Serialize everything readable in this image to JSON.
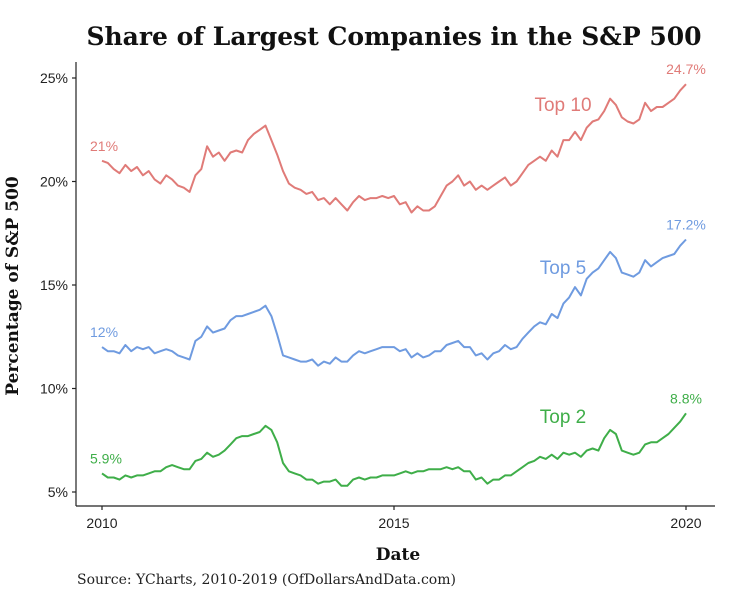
{
  "chart_data": {
    "type": "line",
    "title": "Share of Largest Companies in the S&P 500",
    "xlabel": "Date",
    "ylabel": "Percentage of S&P 500",
    "source": "Source:  YCharts, 2010-2019 (OfDollarsAndData.com)",
    "xlim": [
      2010,
      2020
    ],
    "ylim": [
      5,
      25
    ],
    "x_ticks": [
      2010,
      2015,
      2020
    ],
    "x_tick_labels": [
      "2010",
      "2015",
      "2020"
    ],
    "y_ticks": [
      5,
      10,
      15,
      20,
      25
    ],
    "y_tick_labels": [
      "5%",
      "10%",
      "15%",
      "20%",
      "25%"
    ],
    "grid": false,
    "legend": "none (direct labels)",
    "series": [
      {
        "name": "Top 10",
        "color": "#e07b78",
        "start_label": "21%",
        "end_label": "24.7%",
        "points": [
          [
            2010.0,
            21.0
          ],
          [
            2010.1,
            20.9
          ],
          [
            2010.2,
            20.6
          ],
          [
            2010.3,
            20.4
          ],
          [
            2010.4,
            20.8
          ],
          [
            2010.5,
            20.5
          ],
          [
            2010.6,
            20.7
          ],
          [
            2010.7,
            20.3
          ],
          [
            2010.8,
            20.5
          ],
          [
            2010.9,
            20.1
          ],
          [
            2011.0,
            19.9
          ],
          [
            2011.1,
            20.3
          ],
          [
            2011.2,
            20.1
          ],
          [
            2011.3,
            19.8
          ],
          [
            2011.4,
            19.7
          ],
          [
            2011.5,
            19.5
          ],
          [
            2011.6,
            20.3
          ],
          [
            2011.7,
            20.6
          ],
          [
            2011.8,
            21.7
          ],
          [
            2011.9,
            21.2
          ],
          [
            2012.0,
            21.4
          ],
          [
            2012.1,
            21.0
          ],
          [
            2012.2,
            21.4
          ],
          [
            2012.3,
            21.5
          ],
          [
            2012.4,
            21.4
          ],
          [
            2012.5,
            22.0
          ],
          [
            2012.6,
            22.3
          ],
          [
            2012.7,
            22.5
          ],
          [
            2012.8,
            22.7
          ],
          [
            2012.9,
            22.0
          ],
          [
            2013.0,
            21.3
          ],
          [
            2013.1,
            20.5
          ],
          [
            2013.2,
            19.9
          ],
          [
            2013.3,
            19.7
          ],
          [
            2013.4,
            19.6
          ],
          [
            2013.5,
            19.4
          ],
          [
            2013.6,
            19.5
          ],
          [
            2013.7,
            19.1
          ],
          [
            2013.8,
            19.2
          ],
          [
            2013.9,
            18.9
          ],
          [
            2014.0,
            19.2
          ],
          [
            2014.1,
            18.9
          ],
          [
            2014.2,
            18.6
          ],
          [
            2014.3,
            19.0
          ],
          [
            2014.4,
            19.3
          ],
          [
            2014.5,
            19.1
          ],
          [
            2014.6,
            19.2
          ],
          [
            2014.7,
            19.2
          ],
          [
            2014.8,
            19.3
          ],
          [
            2014.9,
            19.2
          ],
          [
            2015.0,
            19.3
          ],
          [
            2015.1,
            18.9
          ],
          [
            2015.2,
            19.0
          ],
          [
            2015.3,
            18.5
          ],
          [
            2015.4,
            18.8
          ],
          [
            2015.5,
            18.6
          ],
          [
            2015.6,
            18.6
          ],
          [
            2015.7,
            18.8
          ],
          [
            2015.8,
            19.3
          ],
          [
            2015.9,
            19.8
          ],
          [
            2016.0,
            20.0
          ],
          [
            2016.1,
            20.3
          ],
          [
            2016.2,
            19.8
          ],
          [
            2016.3,
            20.0
          ],
          [
            2016.4,
            19.6
          ],
          [
            2016.5,
            19.8
          ],
          [
            2016.6,
            19.6
          ],
          [
            2016.7,
            19.8
          ],
          [
            2016.8,
            20.0
          ],
          [
            2016.9,
            20.2
          ],
          [
            2017.0,
            19.8
          ],
          [
            2017.1,
            20.0
          ],
          [
            2017.2,
            20.4
          ],
          [
            2017.3,
            20.8
          ],
          [
            2017.4,
            21.0
          ],
          [
            2017.5,
            21.2
          ],
          [
            2017.6,
            21.0
          ],
          [
            2017.7,
            21.5
          ],
          [
            2017.8,
            21.2
          ],
          [
            2017.9,
            22.0
          ],
          [
            2018.0,
            22.0
          ],
          [
            2018.1,
            22.4
          ],
          [
            2018.2,
            22.0
          ],
          [
            2018.3,
            22.6
          ],
          [
            2018.4,
            22.9
          ],
          [
            2018.5,
            23.0
          ],
          [
            2018.6,
            23.4
          ],
          [
            2018.7,
            24.0
          ],
          [
            2018.8,
            23.7
          ],
          [
            2018.9,
            23.1
          ],
          [
            2019.0,
            22.9
          ],
          [
            2019.1,
            22.8
          ],
          [
            2019.2,
            23.0
          ],
          [
            2019.3,
            23.8
          ],
          [
            2019.4,
            23.4
          ],
          [
            2019.5,
            23.6
          ],
          [
            2019.6,
            23.6
          ],
          [
            2019.7,
            23.8
          ],
          [
            2019.8,
            24.0
          ],
          [
            2019.9,
            24.4
          ],
          [
            2020.0,
            24.7
          ]
        ]
      },
      {
        "name": "Top 5",
        "color": "#6f9be0",
        "start_label": "12%",
        "end_label": "17.2%",
        "points": [
          [
            2010.0,
            12.0
          ],
          [
            2010.1,
            11.8
          ],
          [
            2010.2,
            11.8
          ],
          [
            2010.3,
            11.7
          ],
          [
            2010.4,
            12.1
          ],
          [
            2010.5,
            11.8
          ],
          [
            2010.6,
            12.0
          ],
          [
            2010.7,
            11.9
          ],
          [
            2010.8,
            12.0
          ],
          [
            2010.9,
            11.7
          ],
          [
            2011.0,
            11.8
          ],
          [
            2011.1,
            11.9
          ],
          [
            2011.2,
            11.8
          ],
          [
            2011.3,
            11.6
          ],
          [
            2011.4,
            11.5
          ],
          [
            2011.5,
            11.4
          ],
          [
            2011.6,
            12.3
          ],
          [
            2011.7,
            12.5
          ],
          [
            2011.8,
            13.0
          ],
          [
            2011.9,
            12.7
          ],
          [
            2012.0,
            12.8
          ],
          [
            2012.1,
            12.9
          ],
          [
            2012.2,
            13.3
          ],
          [
            2012.3,
            13.5
          ],
          [
            2012.4,
            13.5
          ],
          [
            2012.5,
            13.6
          ],
          [
            2012.6,
            13.7
          ],
          [
            2012.7,
            13.8
          ],
          [
            2012.8,
            14.0
          ],
          [
            2012.9,
            13.5
          ],
          [
            2013.0,
            12.6
          ],
          [
            2013.1,
            11.6
          ],
          [
            2013.2,
            11.5
          ],
          [
            2013.3,
            11.4
          ],
          [
            2013.4,
            11.3
          ],
          [
            2013.5,
            11.3
          ],
          [
            2013.6,
            11.4
          ],
          [
            2013.7,
            11.1
          ],
          [
            2013.8,
            11.3
          ],
          [
            2013.9,
            11.2
          ],
          [
            2014.0,
            11.5
          ],
          [
            2014.1,
            11.3
          ],
          [
            2014.2,
            11.3
          ],
          [
            2014.3,
            11.6
          ],
          [
            2014.4,
            11.8
          ],
          [
            2014.5,
            11.7
          ],
          [
            2014.6,
            11.8
          ],
          [
            2014.7,
            11.9
          ],
          [
            2014.8,
            12.0
          ],
          [
            2014.9,
            12.0
          ],
          [
            2015.0,
            12.0
          ],
          [
            2015.1,
            11.8
          ],
          [
            2015.2,
            11.9
          ],
          [
            2015.3,
            11.5
          ],
          [
            2015.4,
            11.7
          ],
          [
            2015.5,
            11.5
          ],
          [
            2015.6,
            11.6
          ],
          [
            2015.7,
            11.8
          ],
          [
            2015.8,
            11.8
          ],
          [
            2015.9,
            12.1
          ],
          [
            2016.0,
            12.2
          ],
          [
            2016.1,
            12.3
          ],
          [
            2016.2,
            12.0
          ],
          [
            2016.3,
            12.0
          ],
          [
            2016.4,
            11.6
          ],
          [
            2016.5,
            11.7
          ],
          [
            2016.6,
            11.4
          ],
          [
            2016.7,
            11.7
          ],
          [
            2016.8,
            11.8
          ],
          [
            2016.9,
            12.1
          ],
          [
            2017.0,
            11.9
          ],
          [
            2017.1,
            12.0
          ],
          [
            2017.2,
            12.4
          ],
          [
            2017.3,
            12.7
          ],
          [
            2017.4,
            13.0
          ],
          [
            2017.5,
            13.2
          ],
          [
            2017.6,
            13.1
          ],
          [
            2017.7,
            13.6
          ],
          [
            2017.8,
            13.4
          ],
          [
            2017.9,
            14.1
          ],
          [
            2018.0,
            14.4
          ],
          [
            2018.1,
            14.9
          ],
          [
            2018.2,
            14.5
          ],
          [
            2018.3,
            15.3
          ],
          [
            2018.4,
            15.6
          ],
          [
            2018.5,
            15.8
          ],
          [
            2018.6,
            16.2
          ],
          [
            2018.7,
            16.6
          ],
          [
            2018.8,
            16.3
          ],
          [
            2018.9,
            15.6
          ],
          [
            2019.0,
            15.5
          ],
          [
            2019.1,
            15.4
          ],
          [
            2019.2,
            15.6
          ],
          [
            2019.3,
            16.2
          ],
          [
            2019.4,
            15.9
          ],
          [
            2019.5,
            16.1
          ],
          [
            2019.6,
            16.3
          ],
          [
            2019.7,
            16.4
          ],
          [
            2019.8,
            16.5
          ],
          [
            2019.9,
            16.9
          ],
          [
            2020.0,
            17.2
          ]
        ]
      },
      {
        "name": "Top 2",
        "color": "#3fae49",
        "start_label": "5.9%",
        "end_label": "8.8%",
        "points": [
          [
            2010.0,
            5.9
          ],
          [
            2010.1,
            5.7
          ],
          [
            2010.2,
            5.7
          ],
          [
            2010.3,
            5.6
          ],
          [
            2010.4,
            5.8
          ],
          [
            2010.5,
            5.7
          ],
          [
            2010.6,
            5.8
          ],
          [
            2010.7,
            5.8
          ],
          [
            2010.8,
            5.9
          ],
          [
            2010.9,
            6.0
          ],
          [
            2011.0,
            6.0
          ],
          [
            2011.1,
            6.2
          ],
          [
            2011.2,
            6.3
          ],
          [
            2011.3,
            6.2
          ],
          [
            2011.4,
            6.1
          ],
          [
            2011.5,
            6.1
          ],
          [
            2011.6,
            6.5
          ],
          [
            2011.7,
            6.6
          ],
          [
            2011.8,
            6.9
          ],
          [
            2011.9,
            6.7
          ],
          [
            2012.0,
            6.8
          ],
          [
            2012.1,
            7.0
          ],
          [
            2012.2,
            7.3
          ],
          [
            2012.3,
            7.6
          ],
          [
            2012.4,
            7.7
          ],
          [
            2012.5,
            7.7
          ],
          [
            2012.6,
            7.8
          ],
          [
            2012.7,
            7.9
          ],
          [
            2012.8,
            8.2
          ],
          [
            2012.9,
            8.0
          ],
          [
            2013.0,
            7.4
          ],
          [
            2013.1,
            6.4
          ],
          [
            2013.2,
            6.0
          ],
          [
            2013.3,
            5.9
          ],
          [
            2013.4,
            5.8
          ],
          [
            2013.5,
            5.6
          ],
          [
            2013.6,
            5.6
          ],
          [
            2013.7,
            5.4
          ],
          [
            2013.8,
            5.5
          ],
          [
            2013.9,
            5.5
          ],
          [
            2014.0,
            5.6
          ],
          [
            2014.1,
            5.3
          ],
          [
            2014.2,
            5.3
          ],
          [
            2014.3,
            5.6
          ],
          [
            2014.4,
            5.7
          ],
          [
            2014.5,
            5.6
          ],
          [
            2014.6,
            5.7
          ],
          [
            2014.7,
            5.7
          ],
          [
            2014.8,
            5.8
          ],
          [
            2014.9,
            5.8
          ],
          [
            2015.0,
            5.8
          ],
          [
            2015.1,
            5.9
          ],
          [
            2015.2,
            6.0
          ],
          [
            2015.3,
            5.9
          ],
          [
            2015.4,
            6.0
          ],
          [
            2015.5,
            6.0
          ],
          [
            2015.6,
            6.1
          ],
          [
            2015.7,
            6.1
          ],
          [
            2015.8,
            6.1
          ],
          [
            2015.9,
            6.2
          ],
          [
            2016.0,
            6.1
          ],
          [
            2016.1,
            6.2
          ],
          [
            2016.2,
            6.0
          ],
          [
            2016.3,
            6.0
          ],
          [
            2016.4,
            5.6
          ],
          [
            2016.5,
            5.7
          ],
          [
            2016.6,
            5.4
          ],
          [
            2016.7,
            5.6
          ],
          [
            2016.8,
            5.6
          ],
          [
            2016.9,
            5.8
          ],
          [
            2017.0,
            5.8
          ],
          [
            2017.1,
            6.0
          ],
          [
            2017.2,
            6.2
          ],
          [
            2017.3,
            6.4
          ],
          [
            2017.4,
            6.5
          ],
          [
            2017.5,
            6.7
          ],
          [
            2017.6,
            6.6
          ],
          [
            2017.7,
            6.8
          ],
          [
            2017.8,
            6.6
          ],
          [
            2017.9,
            6.9
          ],
          [
            2018.0,
            6.8
          ],
          [
            2018.1,
            6.9
          ],
          [
            2018.2,
            6.7
          ],
          [
            2018.3,
            7.0
          ],
          [
            2018.4,
            7.1
          ],
          [
            2018.5,
            7.0
          ],
          [
            2018.6,
            7.6
          ],
          [
            2018.7,
            8.0
          ],
          [
            2018.8,
            7.8
          ],
          [
            2018.9,
            7.0
          ],
          [
            2019.0,
            6.9
          ],
          [
            2019.1,
            6.8
          ],
          [
            2019.2,
            6.9
          ],
          [
            2019.3,
            7.3
          ],
          [
            2019.4,
            7.4
          ],
          [
            2019.5,
            7.4
          ],
          [
            2019.6,
            7.6
          ],
          [
            2019.7,
            7.8
          ],
          [
            2019.8,
            8.1
          ],
          [
            2019.9,
            8.4
          ],
          [
            2020.0,
            8.8
          ]
        ]
      }
    ]
  }
}
